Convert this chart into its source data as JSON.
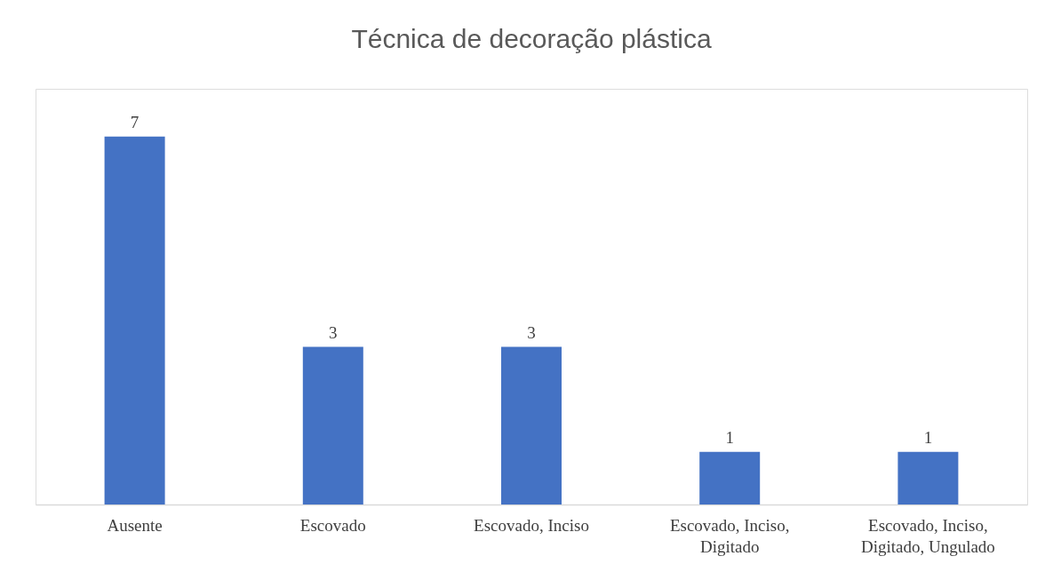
{
  "chart_data": {
    "type": "bar",
    "title": "Técnica de decoração plástica",
    "categories": [
      "Ausente",
      "Escovado",
      "Escovado, Inciso",
      "Escovado, Inciso, Digitado",
      "Escovado, Inciso, Digitado, Ungulado"
    ],
    "values": [
      7,
      3,
      3,
      1,
      1
    ],
    "color": "#4472c4",
    "data_labels": true
  }
}
